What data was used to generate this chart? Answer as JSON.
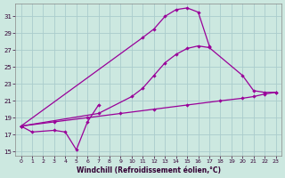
{
  "xlabel": "Windchill (Refroidissement éolien,°C)",
  "background_color": "#cce8e0",
  "grid_color": "#aacccc",
  "line_color": "#990099",
  "xlim": [
    -0.5,
    23.5
  ],
  "ylim": [
    14.5,
    32.5
  ],
  "yticks": [
    15,
    17,
    19,
    21,
    23,
    25,
    27,
    29,
    31
  ],
  "xticks": [
    0,
    1,
    2,
    3,
    4,
    5,
    6,
    7,
    8,
    9,
    10,
    11,
    12,
    13,
    14,
    15,
    16,
    17,
    18,
    19,
    20,
    21,
    22,
    23
  ],
  "curve1_x": [
    0,
    1,
    3,
    4,
    5,
    6,
    7
  ],
  "curve1_y": [
    18.0,
    17.3,
    17.5,
    17.3,
    15.2,
    18.5,
    20.5
  ],
  "curve2_x": [
    0,
    11,
    12,
    13,
    14,
    15,
    16,
    17
  ],
  "curve2_y": [
    18.0,
    28.5,
    29.5,
    31.0,
    31.8,
    32.0,
    31.5,
    27.5
  ],
  "curve3_x": [
    0,
    7,
    10,
    11,
    12,
    13,
    14,
    15,
    16,
    17,
    20,
    21,
    22,
    23
  ],
  "curve3_y": [
    18.0,
    19.5,
    21.5,
    22.5,
    24.0,
    25.5,
    26.5,
    27.2,
    27.5,
    27.3,
    24.0,
    22.2,
    22.0,
    22.0
  ],
  "curve4_x": [
    0,
    3,
    6,
    9,
    12,
    15,
    18,
    20,
    21,
    22,
    23
  ],
  "curve4_y": [
    18.0,
    18.5,
    19.0,
    19.5,
    20.0,
    20.5,
    21.0,
    21.3,
    21.5,
    21.8,
    22.0
  ]
}
